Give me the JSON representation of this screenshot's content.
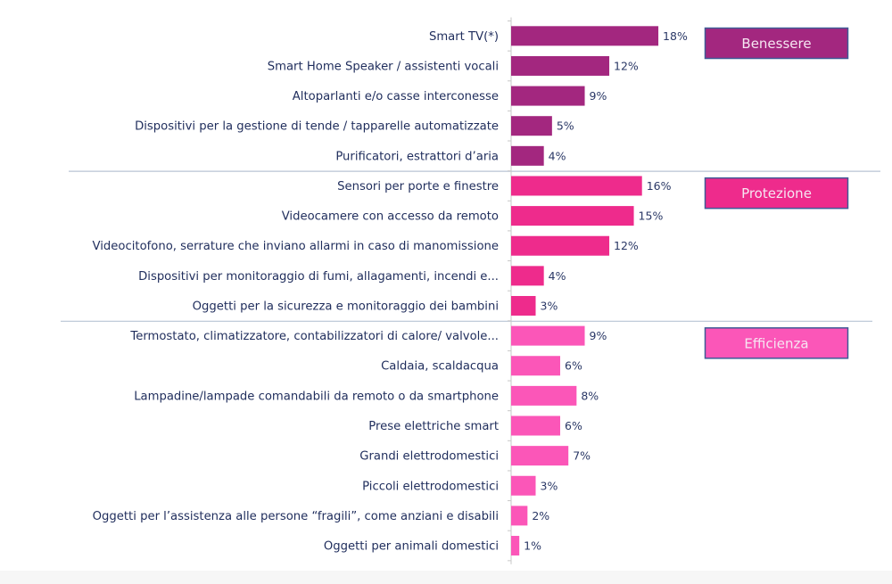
{
  "chart_data": {
    "type": "bar",
    "orientation": "horizontal",
    "title": "",
    "xlabel": "",
    "ylabel": "",
    "xlim": [
      0,
      20
    ],
    "value_suffix": "%",
    "grid": false,
    "groups": [
      {
        "name": "Benessere",
        "color": "#a3277f",
        "items": [
          {
            "label": "Smart TV(*)",
            "value": 18
          },
          {
            "label": "Smart Home Speaker / assistenti vocali",
            "value": 12
          },
          {
            "label": "Altoparlanti e/o casse interconesse",
            "value": 9
          },
          {
            "label": "Dispositivi per la gestione di tende / tapparelle automatizzate",
            "value": 5
          },
          {
            "label": "Purificatori, estrattori d’aria",
            "value": 4
          }
        ]
      },
      {
        "name": "Protezione",
        "color": "#ee2b8c",
        "items": [
          {
            "label": "Sensori per porte e finestre",
            "value": 16
          },
          {
            "label": "Videocamere con accesso da remoto",
            "value": 15
          },
          {
            "label": "Videocitofono, serrature che inviano allarmi in caso di manomissione",
            "value": 12
          },
          {
            "label": "Dispositivi per monitoraggio di fumi, allagamenti, incendi e...",
            "value": 4
          },
          {
            "label": "Oggetti per la sicurezza e monitoraggio dei bambini",
            "value": 3
          }
        ]
      },
      {
        "name": "Efficienza",
        "color": "#fb56b8",
        "items": [
          {
            "label": "Termostato, climatizzatore, contabilizzatori di calore/ valvole...",
            "value": 9
          },
          {
            "label": "Caldaia, scaldacqua",
            "value": 6
          },
          {
            "label": "Lampadine/lampade comandabili da remoto o da smartphone",
            "value": 8
          },
          {
            "label": "Prese elettriche smart",
            "value": 6
          },
          {
            "label": "Grandi elettrodomestici",
            "value": 7
          },
          {
            "label": "Piccoli elettrodomestici",
            "value": 3
          },
          {
            "label": "Oggetti per l’assistenza alle persone “fragili”, come anziani e disabili",
            "value": 2
          },
          {
            "label": "Oggetti per animali domestici",
            "value": 1
          }
        ]
      }
    ],
    "legend_box_border": "#3f5a96",
    "text_color": "#1f2d5c",
    "separator_color": "#b8c4d4"
  }
}
